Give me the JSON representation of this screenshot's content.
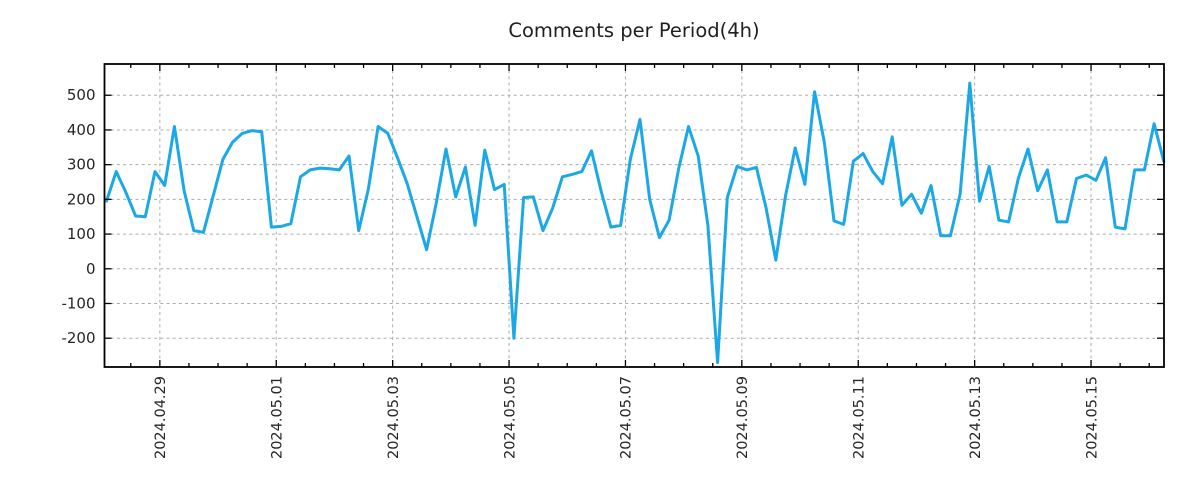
{
  "figure": {
    "title": "Comments per Period(4h)"
  },
  "chart_data": {
    "type": "line",
    "title": "Comments per Period(4h)",
    "xlabel": "",
    "ylabel": "",
    "legend_position": "none",
    "grid": true,
    "x_tick_labels": [
      "2024.04.29",
      "2024.05.01",
      "2024.05.03",
      "2024.05.05",
      "2024.05.07",
      "2024.05.09",
      "2024.05.11",
      "2024.05.13",
      "2024.05.15"
    ],
    "y_ticks": [
      -200,
      -100,
      0,
      100,
      200,
      300,
      400,
      500
    ],
    "ylim": [
      -283,
      590
    ],
    "period_hours": 4,
    "n_points": 110,
    "x_first_tick_at_point": 5.5,
    "x_tick_every_points": 12,
    "x_minor_tick_every_points": 3,
    "line_color": "#1BA8E6",
    "grid_color": "#ababab",
    "axis_color": "#000000",
    "text_color": "#262626",
    "values": [
      195,
      280,
      220,
      152,
      150,
      280,
      240,
      410,
      225,
      110,
      105,
      210,
      315,
      365,
      390,
      398,
      395,
      120,
      122,
      130,
      265,
      285,
      290,
      288,
      285,
      325,
      110,
      230,
      410,
      390,
      320,
      245,
      150,
      55,
      190,
      345,
      207,
      293,
      125,
      342,
      228,
      243,
      -200,
      205,
      207,
      110,
      175,
      265,
      272,
      280,
      340,
      223,
      120,
      125,
      315,
      430,
      200,
      90,
      140,
      290,
      410,
      325,
      125,
      -270,
      205,
      295,
      285,
      292,
      175,
      25,
      210,
      348,
      243,
      510,
      365,
      138,
      128,
      310,
      332,
      280,
      245,
      380,
      183,
      215,
      160,
      240,
      95,
      95,
      215,
      535,
      195,
      295,
      140,
      135,
      260,
      345,
      225,
      285,
      135,
      135,
      260,
      270,
      255,
      320,
      120,
      115,
      285,
      285,
      418,
      310
    ]
  }
}
